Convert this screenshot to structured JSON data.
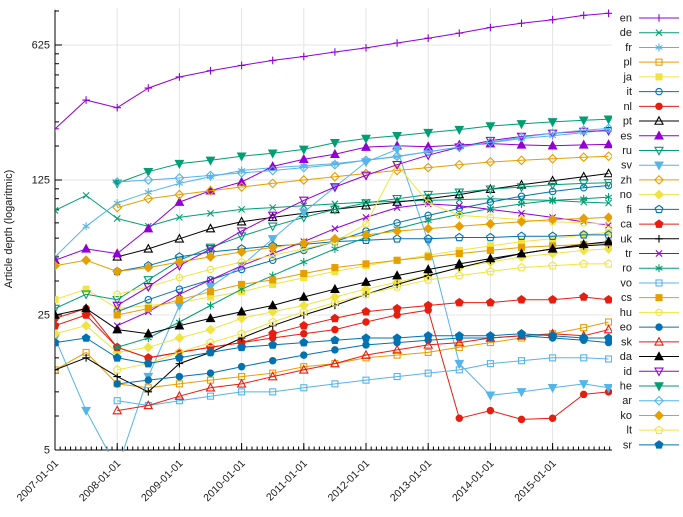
{
  "chart_data": {
    "type": "line",
    "title": "",
    "ylabel": "Article depth (logaritmic)",
    "y_scale": "log5",
    "ylim": [
      5,
      966
    ],
    "y_ticks": [
      5,
      25,
      125,
      625
    ],
    "y_minor_multiples": [
      1.5,
      2,
      2.5,
      3,
      3.5,
      4,
      4.5
    ],
    "x_tick_labels": [
      "2007-01-01",
      "2008-01-01",
      "2009-01-01",
      "2010-01-01",
      "2011-01-01",
      "2012-01-01",
      "2013-01-01",
      "2014-01-01",
      "2015-01-01"
    ],
    "x_tick_years": [
      2007,
      2008,
      2009,
      2010,
      2011,
      2012,
      2013,
      2014,
      2015
    ],
    "grid": true,
    "legend_position": "right-outside",
    "axis_color": "#000000",
    "grid_color": "#e4e4e4",
    "x": [
      2007.0,
      2007.5,
      2008.0,
      2008.5,
      2009.0,
      2009.5,
      2010.0,
      2010.5,
      2011.0,
      2011.5,
      2012.0,
      2012.5,
      2013.0,
      2013.5,
      2014.0,
      2014.5,
      2015.0,
      2015.5,
      2015.9
    ],
    "series": [
      {
        "name": "en",
        "color": "#9400d3",
        "marker": "plus",
        "filled": false,
        "values": [
          230,
          324,
          296,
          374,
          427,
          460,
          490,
          520,
          545,
          575,
          604,
          640,
          678,
          720,
          770,
          810,
          845,
          890,
          912
        ]
      },
      {
        "name": "de",
        "color": "#009e73",
        "marker": "cross",
        "filled": false,
        "values": [
          87,
          104,
          79,
          72,
          80,
          84,
          88,
          90,
          92,
          94,
          96,
          97,
          98,
          99,
          100,
          99,
          98,
          96,
          95
        ]
      },
      {
        "name": "fr",
        "color": "#56b4e9",
        "marker": "star",
        "filled": false,
        "values": [
          50,
          72,
          95,
          108,
          120,
          130,
          140,
          145,
          148,
          152,
          158,
          165,
          175,
          185,
          195,
          205,
          212,
          220,
          228
        ]
      },
      {
        "name": "pl",
        "color": "#e69f00",
        "marker": "square",
        "filled": false,
        "values": [
          13,
          16,
          11,
          10.5,
          11,
          11.5,
          12,
          12.5,
          13.5,
          14,
          15,
          15.5,
          16,
          17,
          18,
          19,
          20,
          21.5,
          23
        ]
      },
      {
        "name": "ja",
        "color": "#f0e442",
        "marker": "square",
        "filled": true,
        "values": [
          30,
          34,
          27,
          28,
          29,
          31,
          33,
          36,
          39,
          42,
          45,
          48,
          51,
          54,
          57,
          60,
          62,
          65,
          67
        ]
      },
      {
        "name": "it",
        "color": "#0072b2",
        "marker": "circle",
        "filled": false,
        "values": [
          null,
          null,
          26,
          30,
          34,
          38,
          43,
          48,
          54,
          60,
          68,
          75,
          82,
          89,
          96,
          103,
          109,
          114,
          117
        ]
      },
      {
        "name": "nl",
        "color": "#e51e10",
        "marker": "circle",
        "filled": true,
        "values": [
          24,
          27,
          17,
          15,
          16,
          17,
          18,
          19,
          20,
          21,
          23,
          25,
          26.5,
          7.3,
          8,
          7.2,
          7.3,
          9.7,
          10
        ]
      },
      {
        "name": "pt",
        "color": "#000000",
        "marker": "triangle-up",
        "filled": false,
        "values": [
          null,
          null,
          50,
          55,
          62,
          70,
          76,
          80,
          84,
          88,
          92,
          96,
          100,
          105,
          112,
          118,
          124,
          130,
          135
        ]
      },
      {
        "name": "es",
        "color": "#9400d3",
        "marker": "triangle-up",
        "filled": true,
        "values": [
          48,
          55,
          52,
          70,
          96,
          110,
          122,
          147,
          160,
          170,
          185,
          188,
          186,
          190,
          193,
          190,
          188,
          190,
          191
        ]
      },
      {
        "name": "ru",
        "color": "#009e73",
        "marker": "triangle-down",
        "filled": false,
        "values": [
          27,
          32,
          30,
          38,
          48,
          56,
          64,
          72,
          80,
          88,
          95,
          100,
          105,
          108,
          112,
          115,
          118,
          120,
          121
        ]
      },
      {
        "name": "sv",
        "color": "#56b4e9",
        "marker": "triangle-down",
        "filled": true,
        "values": [
          19,
          8,
          4,
          12,
          28,
          35,
          45,
          62,
          85,
          115,
          155,
          180,
          60,
          14,
          9.6,
          10,
          10.5,
          11,
          10.5
        ]
      },
      {
        "name": "zh",
        "color": "#e69f00",
        "marker": "diamond",
        "filled": false,
        "values": [
          null,
          null,
          90,
          100,
          105,
          110,
          115,
          120,
          125,
          130,
          135,
          140,
          145,
          150,
          155,
          158,
          161,
          164,
          166
        ]
      },
      {
        "name": "no",
        "color": "#f0e442",
        "marker": "diamond",
        "filled": true,
        "values": [
          20,
          22,
          16,
          17,
          19,
          21,
          24,
          26,
          28,
          31,
          34,
          37,
          40,
          44,
          47,
          50,
          52,
          54,
          55
        ]
      },
      {
        "name": "fi",
        "color": "#0072b2",
        "marker": "pentagon",
        "filled": false,
        "values": [
          null,
          null,
          42,
          45,
          50,
          53,
          55,
          57,
          58,
          60,
          61,
          62,
          62,
          63,
          63,
          64,
          64,
          65,
          65
        ]
      },
      {
        "name": "ca",
        "color": "#e51e10",
        "marker": "pentagon",
        "filled": true,
        "values": [
          22,
          25,
          17,
          15,
          16,
          17,
          18,
          20,
          22,
          24,
          26,
          27,
          28,
          29,
          29,
          30,
          30,
          31,
          30
        ]
      },
      {
        "name": "uk",
        "color": "#000000",
        "marker": "plus",
        "filled": false,
        "values": [
          13,
          15,
          12,
          10,
          14,
          16,
          19,
          22,
          25,
          28,
          32,
          36,
          40,
          44,
          48,
          52,
          55,
          57,
          58
        ]
      },
      {
        "name": "tr",
        "color": "#9400d3",
        "marker": "cross",
        "filled": false,
        "values": [
          null,
          null,
          22,
          26,
          32,
          38,
          45,
          52,
          60,
          70,
          80,
          90,
          94,
          92,
          88,
          84,
          80,
          76,
          73
        ]
      },
      {
        "name": "ro",
        "color": "#009e73",
        "marker": "star",
        "filled": false,
        "values": [
          null,
          null,
          17,
          19,
          23,
          28,
          34,
          40,
          47,
          55,
          63,
          70,
          77,
          83,
          89,
          94,
          98,
          100,
          102
        ]
      },
      {
        "name": "vo",
        "color": "#56b4e9",
        "marker": "square",
        "filled": false,
        "values": [
          null,
          null,
          9,
          8.5,
          9,
          9.5,
          10,
          10,
          10.5,
          11,
          11.5,
          12,
          12.5,
          13,
          14,
          14.5,
          15,
          15,
          14.8
        ]
      },
      {
        "name": "cs",
        "color": "#e69f00",
        "marker": "square",
        "filled": true,
        "values": [
          null,
          null,
          25,
          27,
          30,
          33,
          36,
          38,
          41,
          44,
          46,
          48,
          50,
          52,
          54,
          56,
          57,
          58,
          59
        ]
      },
      {
        "name": "hu",
        "color": "#f0e442",
        "marker": "circle",
        "filled": false,
        "values": [
          null,
          null,
          32,
          35,
          39,
          43,
          47,
          51,
          55,
          60,
          74,
          150,
          95,
          82,
          80,
          78,
          76,
          75,
          74
        ]
      },
      {
        "name": "eo",
        "color": "#0072b2",
        "marker": "circle",
        "filled": true,
        "values": [
          null,
          null,
          11,
          11.5,
          12,
          12.5,
          13.5,
          14.5,
          15.5,
          16.5,
          17.5,
          18,
          18.5,
          19,
          19,
          19.5,
          19,
          18.5,
          18
        ]
      },
      {
        "name": "sk",
        "color": "#e51e10",
        "marker": "triangle-up",
        "filled": false,
        "values": [
          null,
          null,
          8,
          8.5,
          9.5,
          10.5,
          11,
          12,
          13,
          14,
          15.5,
          16.5,
          17.5,
          18,
          19,
          19.5,
          20,
          19.5,
          21
        ]
      },
      {
        "name": "da",
        "color": "#000000",
        "marker": "triangle-up",
        "filled": true,
        "values": [
          25,
          27,
          21,
          20,
          22,
          24,
          26,
          28,
          31,
          34,
          37,
          40,
          43,
          46,
          49,
          52,
          55,
          58,
          60
        ]
      },
      {
        "name": "id",
        "color": "#9400d3",
        "marker": "triangle-down",
        "filled": false,
        "values": [
          null,
          null,
          28,
          35,
          45,
          55,
          68,
          82,
          98,
          115,
          132,
          150,
          168,
          185,
          200,
          210,
          218,
          223,
          225
        ]
      },
      {
        "name": "he",
        "color": "#009e73",
        "marker": "triangle-down",
        "filled": true,
        "values": [
          null,
          null,
          120,
          138,
          152,
          158,
          166,
          172,
          180,
          195,
          205,
          212,
          220,
          228,
          238,
          244,
          250,
          255,
          258
        ]
      },
      {
        "name": "ar",
        "color": "#56b4e9",
        "marker": "diamond",
        "filled": false,
        "values": [
          null,
          null,
          122,
          125,
          128,
          132,
          136,
          140,
          145,
          150,
          158,
          166,
          175,
          185,
          196,
          208,
          218,
          226,
          231
        ]
      },
      {
        "name": "ko",
        "color": "#e69f00",
        "marker": "diamond",
        "filled": true,
        "values": [
          45,
          48,
          42,
          44,
          47,
          50,
          53,
          56,
          59,
          62,
          65,
          68,
          70,
          72,
          74,
          76,
          78,
          79,
          80
        ]
      },
      {
        "name": "lt",
        "color": "#f0e442",
        "marker": "pentagon",
        "filled": false,
        "values": [
          null,
          null,
          13,
          14,
          16,
          18,
          20,
          23,
          26,
          29,
          32,
          35,
          38,
          40,
          42,
          44,
          45,
          46,
          46
        ]
      },
      {
        "name": "sr",
        "color": "#0072b2",
        "marker": "pentagon",
        "filled": true,
        "values": [
          18,
          19,
          15,
          14,
          15,
          16,
          17,
          17.5,
          18,
          18.5,
          19,
          19,
          19.5,
          19.5,
          19.5,
          20,
          19.5,
          19,
          19
        ]
      }
    ]
  }
}
